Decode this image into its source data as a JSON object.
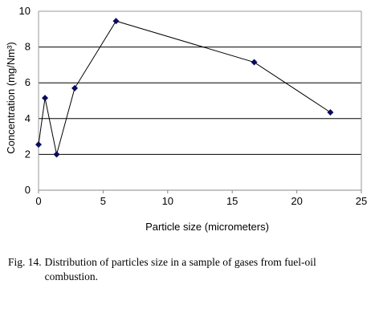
{
  "chart_data": {
    "type": "line",
    "title": "",
    "xlabel": "Particle size (micrometers)",
    "ylabel": "Concentration (mg/Nm³)",
    "xlim": [
      0,
      25
    ],
    "ylim": [
      0,
      10
    ],
    "x_ticks": [
      "0",
      "5",
      "10",
      "15",
      "20",
      "25"
    ],
    "y_ticks": [
      "0",
      "2",
      "4",
      "6",
      "8",
      "10"
    ],
    "grid": "horizontal",
    "legend": "none",
    "series": [
      {
        "x": [
          0,
          0.5,
          1.4,
          2.8,
          6.0,
          16.7,
          22.6
        ],
        "y": [
          2.55,
          5.15,
          2.0,
          5.7,
          9.45,
          7.15,
          4.35
        ]
      }
    ],
    "colors": {
      "line": "#000000",
      "marker": "#0b0b5e",
      "grid": "#000000"
    }
  },
  "caption": {
    "label": "Fig. 14.",
    "text": "Distribution of particles size in a sample of gases from fuel-oil combustion."
  }
}
